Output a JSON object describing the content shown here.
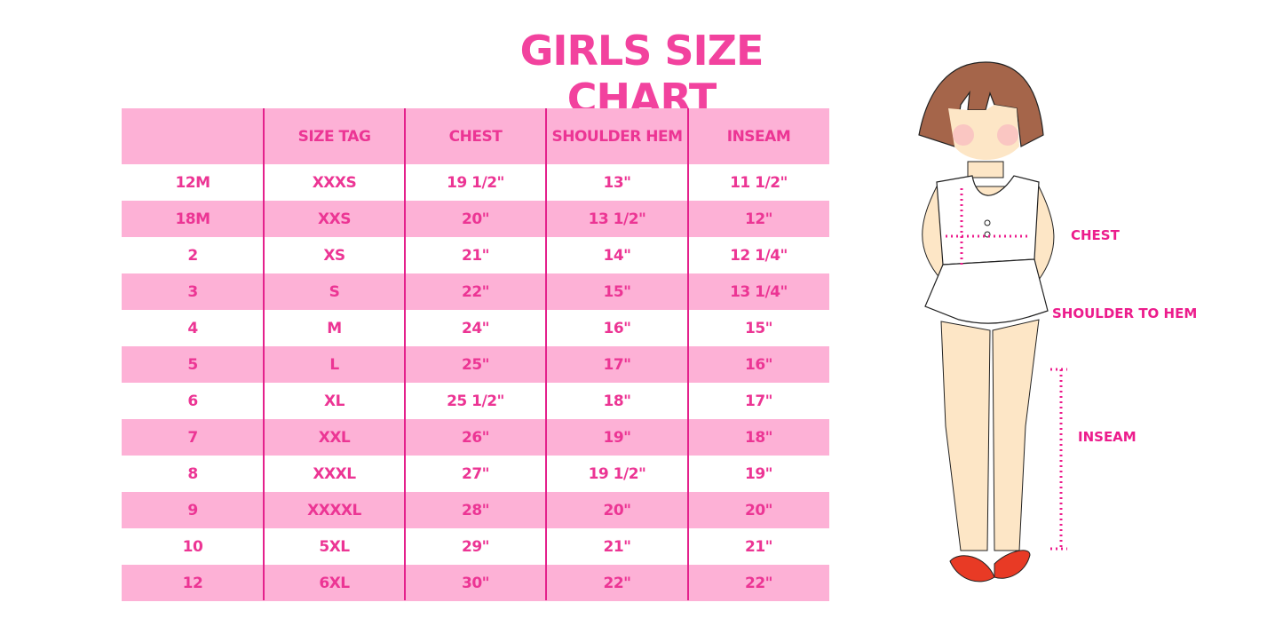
{
  "title": "GIRLS SIZE CHART",
  "table": {
    "headers": [
      "",
      "SIZE TAG",
      "CHEST",
      "SHOULDER HEM",
      "INSEAM"
    ],
    "rows": [
      [
        "12M",
        "XXXS",
        "19 1/2\"",
        "13\"",
        "11 1/2\""
      ],
      [
        "18M",
        "XXS",
        "20\"",
        "13 1/2\"",
        "12\""
      ],
      [
        "2",
        "XS",
        "21\"",
        "14\"",
        "12 1/4\""
      ],
      [
        "3",
        "S",
        "22\"",
        "15\"",
        "13 1/4\""
      ],
      [
        "4",
        "M",
        "24\"",
        "16\"",
        "15\""
      ],
      [
        "5",
        "L",
        "25\"",
        "17\"",
        "16\""
      ],
      [
        "6",
        "XL",
        "25 1/2\"",
        "18\"",
        "17\""
      ],
      [
        "7",
        "XXL",
        "26\"",
        "19\"",
        "18\""
      ],
      [
        "8",
        "XXXL",
        "27\"",
        "19 1/2\"",
        "19\""
      ],
      [
        "9",
        "XXXXL",
        "28\"",
        "20\"",
        "20\""
      ],
      [
        "10",
        "5XL",
        "29\"",
        "21\"",
        "21\""
      ],
      [
        "12",
        "6XL",
        "30\"",
        "22\"",
        "22\""
      ]
    ]
  },
  "figure": {
    "labels": {
      "chest": "CHEST",
      "shoulder": "SHOULDER TO HEM",
      "inseam": "INSEAM"
    }
  },
  "colors": {
    "accent": "#ec3594",
    "row_pink": "#fdb1d6",
    "divider": "#e4218c"
  }
}
